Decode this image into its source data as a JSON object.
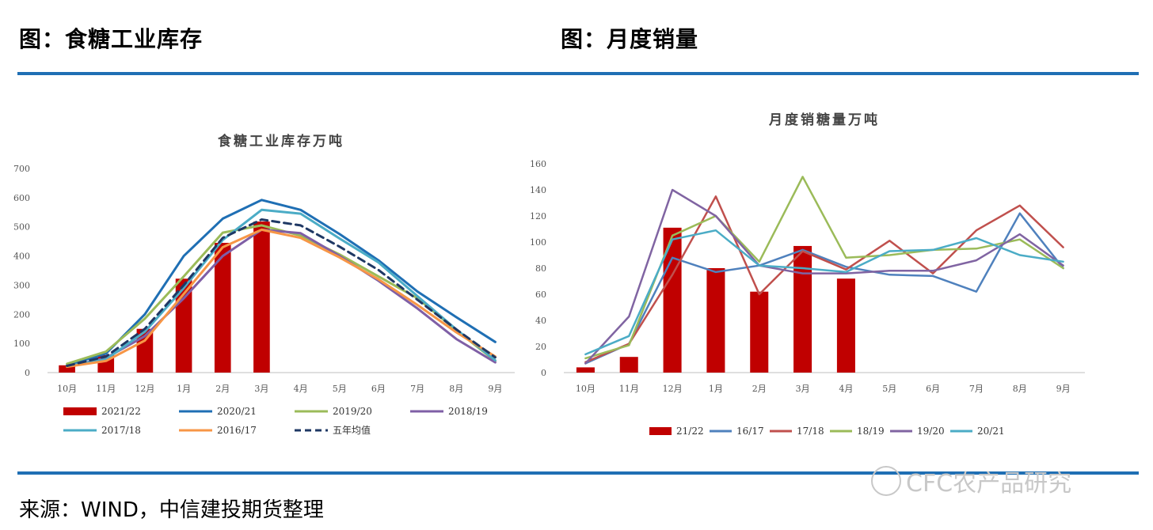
{
  "header": {
    "left_title": "图：食糖工业库存",
    "right_title": "图：月度销量"
  },
  "footer": {
    "source": "来源：WIND，中信建投期货整理",
    "watermark": "CFC农产品研究"
  },
  "chart_data": [
    {
      "type": "bar+line",
      "title": "食糖工业库存万吨",
      "categories": [
        "10月",
        "11月",
        "12月",
        "1月",
        "2月",
        "3月",
        "4月",
        "5月",
        "6月",
        "7月",
        "8月",
        "9月"
      ],
      "ylim": [
        0,
        700
      ],
      "yticks": [
        0,
        100,
        200,
        300,
        400,
        500,
        600,
        700
      ],
      "legend_position": "bottom",
      "bar_series": {
        "name": "2021/22",
        "color": "#c00000",
        "values": [
          25,
          60,
          150,
          322,
          445,
          518,
          null,
          null,
          null,
          null,
          null,
          null
        ]
      },
      "series": [
        {
          "name": "2020/21",
          "color": "#1f6fb4",
          "values": [
            25,
            65,
            200,
            400,
            528,
            592,
            558,
            475,
            385,
            278,
            190,
            105
          ]
        },
        {
          "name": "2019/20",
          "color": "#9bbb59",
          "values": [
            30,
            72,
            185,
            330,
            480,
            505,
            470,
            405,
            330,
            255,
            145,
            40
          ]
        },
        {
          "name": "2018/19",
          "color": "#7f5fa6",
          "values": [
            20,
            50,
            125,
            255,
            400,
            490,
            478,
            400,
            315,
            220,
            115,
            35
          ]
        },
        {
          "name": "2017/18",
          "color": "#4bacc6",
          "values": [
            22,
            45,
            140,
            290,
            455,
            558,
            545,
            460,
            378,
            262,
            148,
            42
          ]
        },
        {
          "name": "2016/17",
          "color": "#f79646",
          "values": [
            20,
            40,
            110,
            270,
            430,
            490,
            462,
            395,
            320,
            232,
            138,
            55
          ]
        },
        {
          "name": "五年均值",
          "color": "#1f3864",
          "dashed": true,
          "values": [
            23,
            55,
            150,
            300,
            462,
            525,
            505,
            432,
            352,
            250,
            148,
            52
          ]
        }
      ]
    },
    {
      "type": "bar+line",
      "title": "月度销糖量万吨",
      "categories": [
        "10月",
        "11月",
        "12月",
        "1月",
        "2月",
        "3月",
        "4月",
        "5月",
        "6月",
        "7月",
        "8月",
        "9月"
      ],
      "ylim": [
        0,
        160
      ],
      "yticks": [
        0,
        20,
        40,
        60,
        80,
        100,
        120,
        140,
        160
      ],
      "legend_position": "bottom",
      "bar_series": {
        "name": "21/22",
        "color": "#c00000",
        "values": [
          4,
          12,
          111,
          80,
          62,
          97,
          72,
          null,
          null,
          null,
          null,
          null
        ]
      },
      "series": [
        {
          "name": "16/17",
          "color": "#4f81bd",
          "values": [
            7,
            22,
            88,
            77,
            82,
            94,
            81,
            75,
            74,
            62,
            122,
            80
          ]
        },
        {
          "name": "17/18",
          "color": "#c0504d",
          "values": [
            8,
            22,
            75,
            135,
            60,
            93,
            79,
            101,
            76,
            109,
            128,
            96
          ]
        },
        {
          "name": "18/19",
          "color": "#9bbb59",
          "values": [
            11,
            21,
            105,
            120,
            85,
            150,
            88,
            90,
            94,
            95,
            102,
            80
          ]
        },
        {
          "name": "19/20",
          "color": "#8064a2",
          "values": [
            7,
            43,
            140,
            120,
            82,
            76,
            76,
            78,
            78,
            86,
            106,
            82
          ]
        },
        {
          "name": "20/21",
          "color": "#4bacc6",
          "values": [
            14,
            28,
            102,
            109,
            82,
            80,
            77,
            93,
            94,
            103,
            90,
            85
          ]
        }
      ]
    }
  ]
}
